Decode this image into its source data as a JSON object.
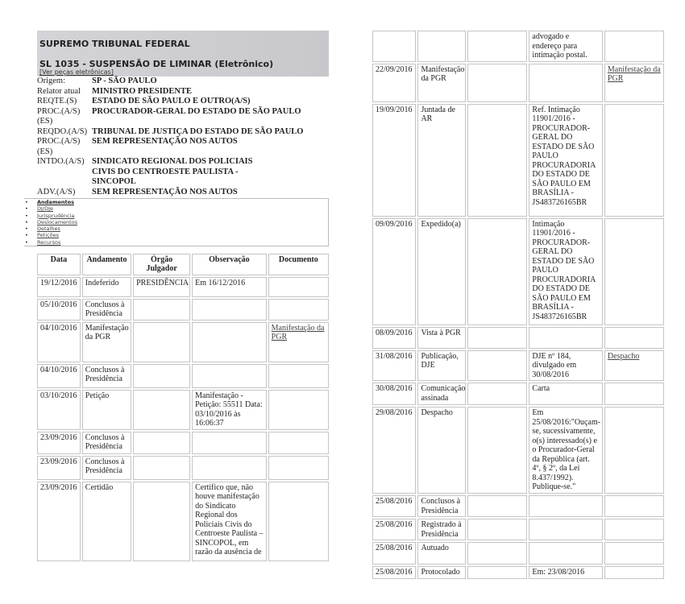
{
  "header": {
    "court": "SUPREMO TRIBUNAL FEDERAL",
    "case_title": "SL 1035 - SUSPENSÃO DE LIMINAR  (Eletrônico)",
    "electronic_link": "[Ver peças eletrônicas]"
  },
  "parties": [
    {
      "label": "Origem:",
      "value": "SP - SÃO PAULO"
    },
    {
      "label": "Relator atual",
      "value": "MINISTRO PRESIDENTE"
    },
    {
      "label": "REQTE.(S)",
      "value": "ESTADO DE SÃO PAULO E OUTRO(A/S)"
    },
    {
      "label": "PROC.(A/S)(ES)",
      "value": "PROCURADOR-GERAL DO ESTADO DE SÃO PAULO"
    },
    {
      "label": "REQDO.(A/S)",
      "value": "TRIBUNAL DE JUSTIÇA DO ESTADO DE SÃO PAULO"
    },
    {
      "label": "PROC.(A/S)(ES)",
      "value": "SEM REPRESENTAÇÃO NOS AUTOS"
    },
    {
      "label": "INTDO.(A/S)",
      "value": "SINDICATO REGIONAL DOS POLICIAIS CIVIS DO CENTROESTE PAULISTA - SINCOPOL"
    },
    {
      "label": "ADV.(A/S)",
      "value": "SEM REPRESENTAÇÃO NOS AUTOS"
    }
  ],
  "nav": [
    "Andamentos",
    "DJ/DJe",
    "Jurisprudência",
    "Deslocamentos",
    "Detalhes",
    "Petições",
    "Recursos"
  ],
  "table": {
    "columns": [
      "Data",
      "Andamento",
      "Órgão Julgador",
      "Observação",
      "Documento"
    ],
    "rows_left": [
      [
        "19/12/2016",
        "Indeferido",
        "PRESIDÊNCIA",
        "Em 16/12/2016",
        ""
      ],
      [
        "05/10/2016",
        "Conclusos à Presidência",
        "",
        "",
        ""
      ],
      [
        "04/10/2016",
        "Manifestação da PGR",
        "",
        "",
        "Manifestação da PGR"
      ],
      [
        "04/10/2016",
        "Conclusos à Presidência",
        "",
        "",
        ""
      ],
      [
        "03/10/2016",
        "Petição",
        "",
        "Manifestação - Petição: 55511 Data: 03/10/2016 às 16:06:37",
        ""
      ],
      [
        "23/09/2016",
        "Conclusos à Presidência",
        "",
        "",
        ""
      ],
      [
        "23/09/2016",
        "Conclusos à Presidência",
        "",
        "",
        ""
      ],
      [
        "23/09/2016",
        "Certidão",
        "",
        "Certifico que, não houve manifestação do Sindicato Regional dos Policiais Civis do Centroeste Paulista – SINCOPOL, em razão da ausência de",
        ""
      ]
    ],
    "rows_right": [
      [
        "",
        "",
        "",
        "advogado e endereço para intimação postal.",
        ""
      ],
      [
        "22/09/2016",
        "Manifestação da PGR",
        "",
        "",
        "Manifestação da PGR"
      ],
      [
        "19/09/2016",
        "Juntada de AR",
        "",
        "Ref. Intimação 11901/2016 - PROCURADOR-GERAL DO ESTADO DE SÃO PAULO PROCURADORIA DO ESTADO DE SÃO PAULO EM BRASÍLIA - JS483726165BR",
        ""
      ],
      [
        "09/09/2016",
        "Expedido(a)",
        "",
        "Intimação 11901/2016 - PROCURADOR-GERAL DO ESTADO DE SÃO PAULO PROCURADORIA DO ESTADO DE SÃO PAULO EM BRASÍLIA - JS483726165BR",
        ""
      ],
      [
        "08/09/2016",
        "Vista à PGR",
        "",
        "",
        ""
      ],
      [
        "31/08/2016",
        "Publicação, DJE",
        "",
        "DJE nº 184, divulgado em 30/08/2016",
        "Despacho"
      ],
      [
        "30/08/2016",
        "Comunicação assinada",
        "",
        "Carta",
        ""
      ],
      [
        "29/08/2016",
        "Despacho",
        "",
        "Em 25/08/2016:\"Ouçam-se, sucessivamente, o(s) interessado(s) e o Procurador-Geral da República (art. 4º, § 2º, da Lei 8.437/1992). Publique-se.\"",
        ""
      ],
      [
        "25/08/2016",
        "Conclusos à Presidência",
        "",
        "",
        ""
      ],
      [
        "25/08/2016",
        "Registrado à Presidência",
        "",
        "",
        ""
      ],
      [
        "25/08/2016",
        "Autuado",
        "",
        "",
        ""
      ],
      [
        "25/08/2016",
        "Protocolado",
        "",
        "Em: 23/08/2016",
        ""
      ]
    ]
  }
}
